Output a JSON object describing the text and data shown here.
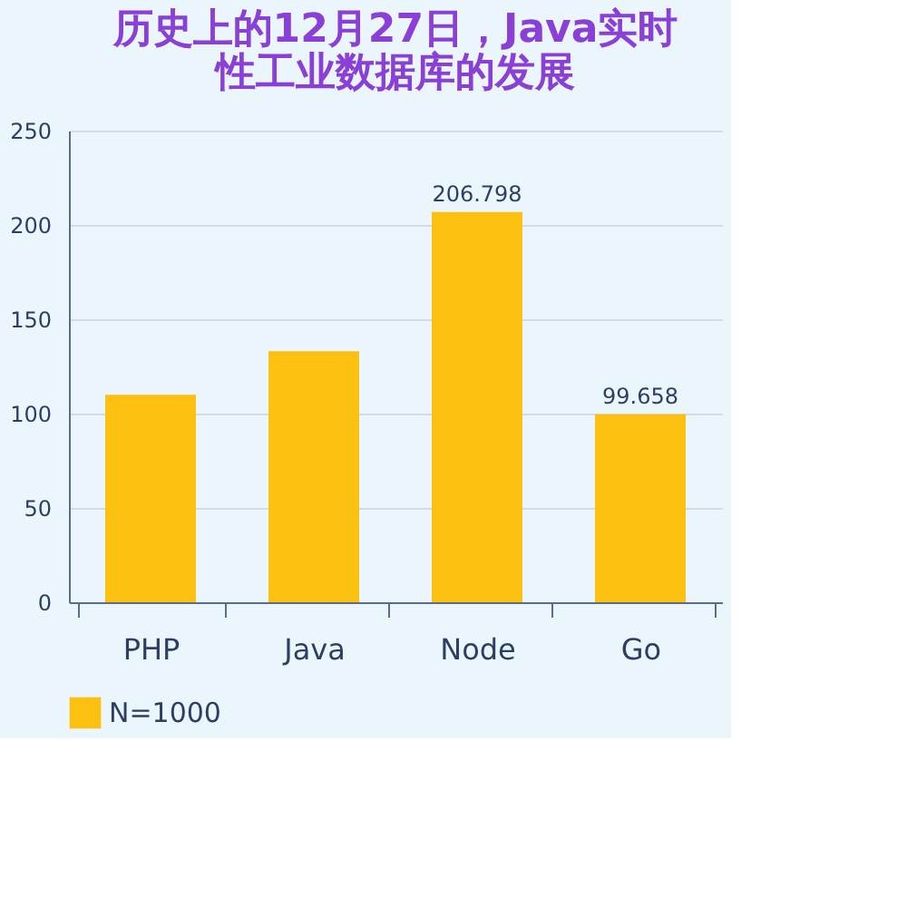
{
  "chart_data": {
    "type": "bar",
    "title": [
      "历史上的12月27日，Java实时",
      "性工业数据库的发展"
    ],
    "categories": [
      "PHP",
      "Java",
      "Node",
      "Go"
    ],
    "series": [
      {
        "name": "N=1000",
        "color": "#fcc010",
        "values": [
          110,
          133,
          206.798,
          99.658
        ],
        "value_labels": [
          null,
          null,
          "206.798",
          "99.658"
        ]
      }
    ],
    "ylim": [
      0,
      250
    ],
    "yticks": [
      0,
      50,
      100,
      150,
      200,
      250
    ],
    "grid": "y",
    "legend": "bottom"
  }
}
